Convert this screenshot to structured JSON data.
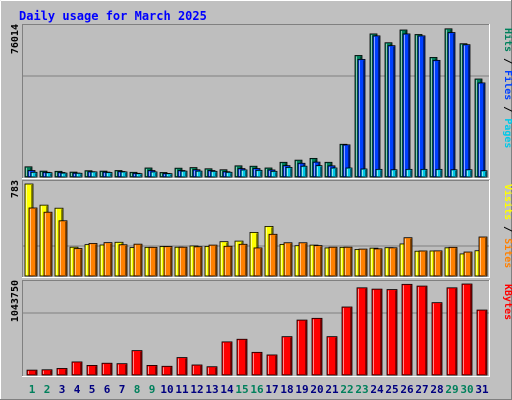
{
  "title": "Daily usage for March 2025",
  "colors": {
    "background": "#c0c0c0",
    "plot": "#bebebe",
    "hits": "#00805c",
    "files": "#0040ff",
    "pages": "#00c8e8",
    "visits": "#ffff00",
    "sites": "#ff8000",
    "kbytes": "#ff0000",
    "title": "#0000ff",
    "weekday": "#000080",
    "weekend": "#00805c"
  },
  "days": [
    "1",
    "2",
    "3",
    "4",
    "5",
    "6",
    "7",
    "8",
    "9",
    "10",
    "11",
    "12",
    "13",
    "14",
    "15",
    "16",
    "17",
    "18",
    "19",
    "20",
    "21",
    "22",
    "23",
    "24",
    "25",
    "26",
    "27",
    "28",
    "29",
    "30",
    "31"
  ],
  "weekend_days": [
    1,
    2,
    8,
    9,
    15,
    16,
    22,
    23,
    29,
    30
  ],
  "chart_data": [
    {
      "type": "bar",
      "name": "hits-files-pages",
      "ymax_label": "76014",
      "ylim": [
        0,
        76014
      ],
      "legend": [
        "Pages",
        "Files",
        "Hits"
      ],
      "series": [
        {
          "name": "Hits",
          "values": [
            5200,
            3000,
            2900,
            2500,
            3200,
            3000,
            3300,
            2400,
            4600,
            2300,
            4500,
            4800,
            4200,
            3700,
            5700,
            5500,
            4600,
            7500,
            8600,
            9500,
            7500,
            16700,
            62000,
            73000,
            68500,
            75000,
            72700,
            61000,
            75600,
            68000,
            50000
          ]
        },
        {
          "name": "Files",
          "values": [
            3300,
            2400,
            2300,
            2000,
            2700,
            2500,
            2800,
            1900,
            3300,
            1800,
            3300,
            3700,
            3300,
            2700,
            4300,
            4300,
            3600,
            5800,
            7000,
            7600,
            5700,
            16400,
            60000,
            72000,
            67000,
            73000,
            72000,
            59500,
            73700,
            67500,
            48000
          ]
        },
        {
          "name": "Pages",
          "values": [
            2400,
            2200,
            2000,
            1900,
            2600,
            2300,
            2600,
            1700,
            2600,
            1700,
            3000,
            3000,
            2900,
            2400,
            3600,
            3400,
            2900,
            4900,
            5500,
            5800,
            4600,
            4600,
            4100,
            3900,
            3700,
            3900,
            3900,
            3900,
            3700,
            3700,
            3200
          ]
        }
      ]
    },
    {
      "type": "bar",
      "name": "visits-sites",
      "ymax_label": "783",
      "ylim": [
        0,
        783
      ],
      "legend": [
        "Sites",
        "Visits"
      ],
      "series": [
        {
          "name": "Visits",
          "values": [
            783,
            603,
            577,
            245,
            267,
            264,
            287,
            242,
            244,
            251,
            245,
            256,
            252,
            292,
            297,
            371,
            422,
            269,
            258,
            263,
            239,
            244,
            226,
            237,
            241,
            273,
            211,
            213,
            240,
            188,
            215
          ]
        },
        {
          "name": "Sites",
          "values": [
            579,
            543,
            470,
            234,
            277,
            284,
            266,
            271,
            244,
            251,
            245,
            249,
            263,
            253,
            270,
            239,
            355,
            283,
            283,
            259,
            245,
            245,
            229,
            231,
            240,
            326,
            213,
            214,
            244,
            204,
            332
          ]
        }
      ]
    },
    {
      "type": "bar",
      "name": "kbytes",
      "ymax_label": "1043750",
      "ylim": [
        0,
        1043750
      ],
      "legend": [
        "KBytes"
      ],
      "series": [
        {
          "name": "KBytes",
          "values": [
            56000,
            60000,
            75000,
            150000,
            110000,
            135000,
            130000,
            280000,
            110000,
            100000,
            200000,
            115000,
            95000,
            380000,
            410000,
            260000,
            230000,
            440000,
            630000,
            650000,
            440000,
            780000,
            1000000,
            985000,
            980000,
            1040000,
            1020000,
            830000,
            1000000,
            1043750,
            745000
          ]
        }
      ]
    }
  ]
}
